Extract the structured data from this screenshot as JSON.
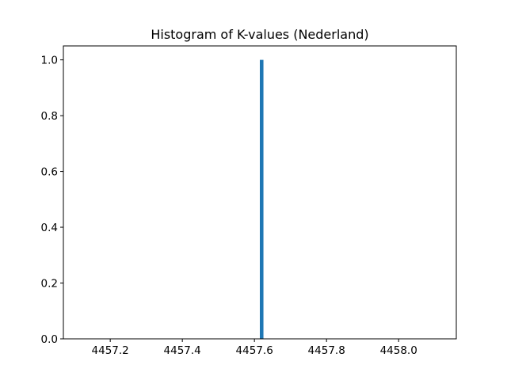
{
  "chart_data": {
    "type": "bar",
    "title": "Histogram of K-values (Nederland)",
    "xlabel": "",
    "ylabel": "",
    "bins": [
      {
        "x0": 4457.615,
        "x1": 4457.625,
        "count": 1
      }
    ],
    "xlim": [
      4457.07,
      4458.16
    ],
    "ylim": [
      0,
      1.05
    ],
    "xticks": [
      4457.2,
      4457.4,
      4457.6,
      4457.8,
      4458.0
    ],
    "xtick_labels": [
      "4457.2",
      "4457.4",
      "4457.6",
      "4457.8",
      "4458.0"
    ],
    "yticks": [
      0.0,
      0.2,
      0.4,
      0.6,
      0.8,
      1.0
    ],
    "ytick_labels": [
      "0.0",
      "0.2",
      "0.4",
      "0.6",
      "0.8",
      "1.0"
    ],
    "bar_color": "#1f77b4",
    "grid": false,
    "legend": "none"
  }
}
